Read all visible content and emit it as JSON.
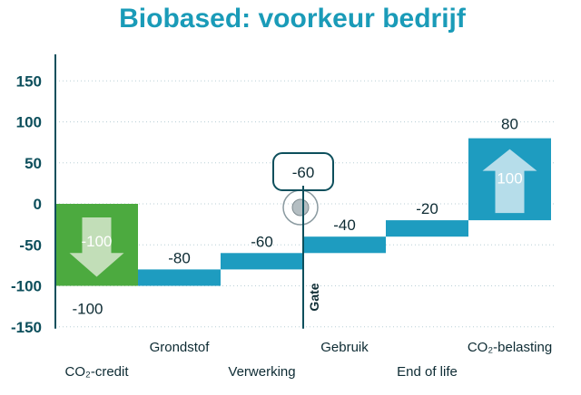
{
  "chart_data": {
    "type": "bar",
    "subtype": "waterfall",
    "title": "Biobased: voorkeur bedrijf",
    "xlabel": "",
    "ylabel": "",
    "ylim": [
      -150,
      180
    ],
    "yticks": [
      150,
      100,
      50,
      0,
      -50,
      -100,
      -150
    ],
    "grid": true,
    "colors": {
      "title": "#1a9bb8",
      "step_bar": "#1e9cc0",
      "credit_bar": "#4caa3f",
      "axis": "#0d4f5c",
      "grid": "#b9cfd6"
    },
    "bars": [
      {
        "category": "CO₂-credit",
        "start": 0,
        "end": -100,
        "value": -100,
        "value_label": "-100",
        "inner_label": "-100",
        "color": "#4caa3f",
        "arrow": "down"
      },
      {
        "category": "Grondstof",
        "start": -80,
        "end": -100,
        "value": -80,
        "value_label": "-80",
        "color": "#1e9cc0"
      },
      {
        "category": "Verwerking",
        "start": -60,
        "end": -80,
        "value": -60,
        "value_label": "-60",
        "color": "#1e9cc0"
      },
      {
        "category": "Gebruik",
        "start": -40,
        "end": -60,
        "value": -40,
        "value_label": "-40",
        "color": "#1e9cc0"
      },
      {
        "category": "End of life",
        "start": -20,
        "end": -40,
        "value": -20,
        "value_label": "-20",
        "color": "#1e9cc0"
      },
      {
        "category": "CO₂-belasting",
        "start": -20,
        "end": 80,
        "value": 80,
        "value_label": "80",
        "inner_label": "100",
        "color": "#1e9cc0",
        "arrow": "up"
      }
    ],
    "annotations": {
      "gate_label": "Gate",
      "gate_value": "-60"
    }
  }
}
